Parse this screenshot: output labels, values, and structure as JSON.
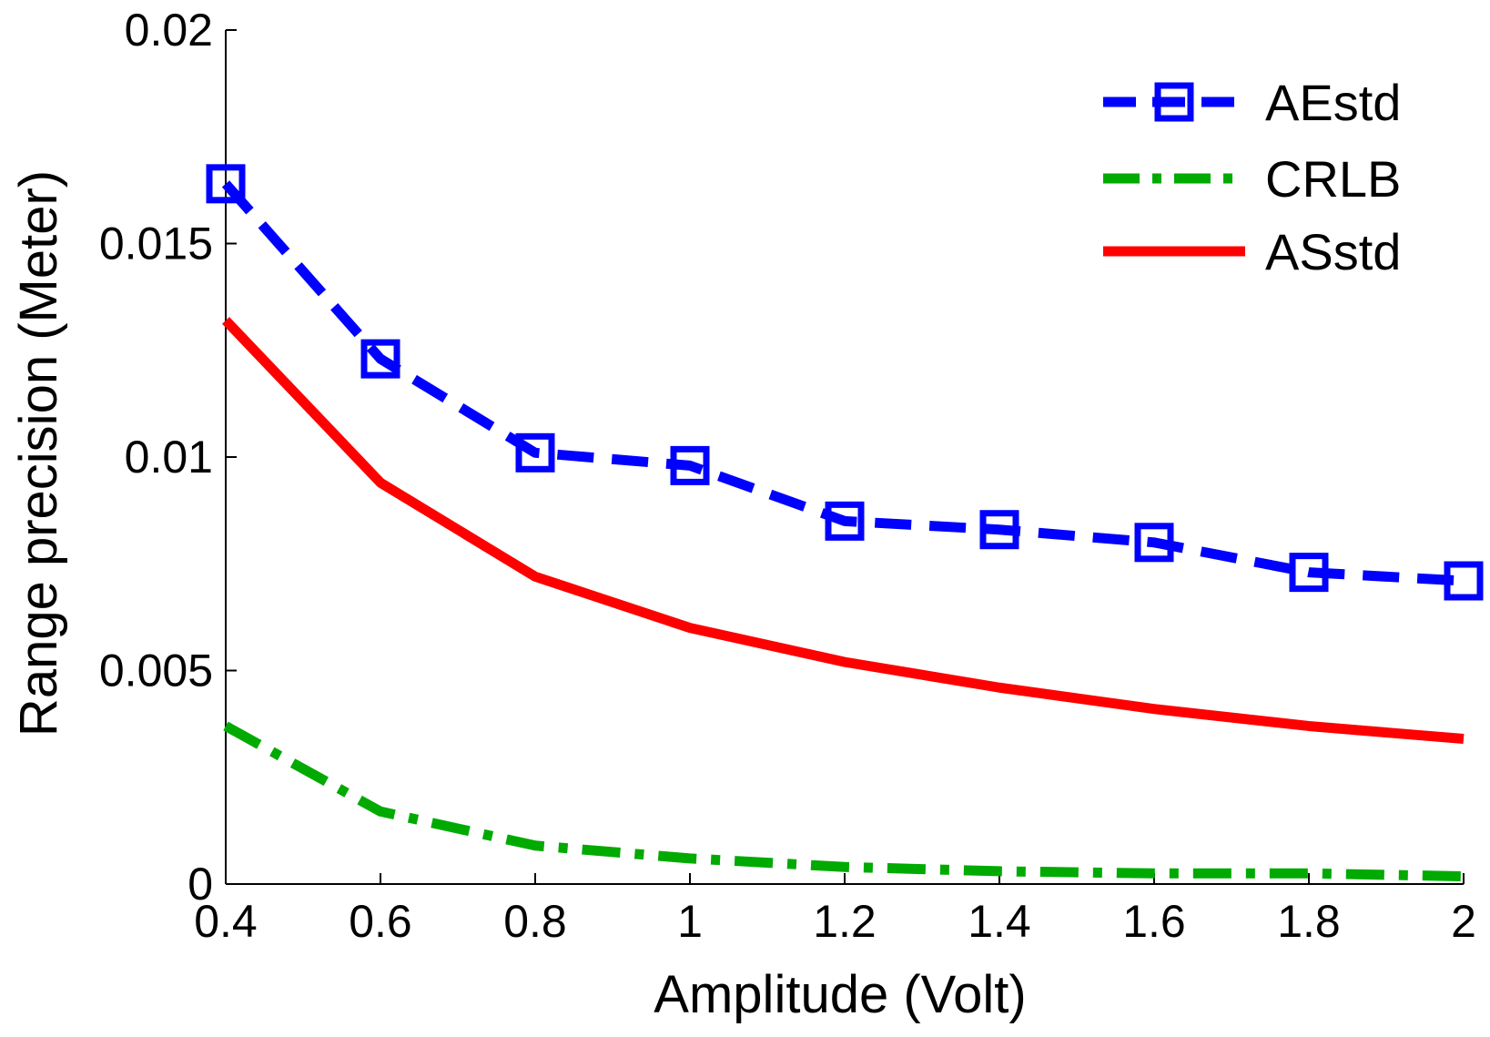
{
  "chart_data": {
    "type": "line",
    "title": "",
    "xlabel": "Amplitude (Volt)",
    "ylabel": "Range precision (Meter)",
    "xlim": [
      0.4,
      2
    ],
    "ylim": [
      0,
      0.02
    ],
    "x": [
      0.4,
      0.6,
      0.8,
      1.0,
      1.2,
      1.4,
      1.6,
      1.8,
      2.0
    ],
    "xticks": [
      0.4,
      0.6,
      0.8,
      1,
      1.2,
      1.4,
      1.6,
      1.8,
      2
    ],
    "xtick_labels": [
      "0.4",
      "0.6",
      "0.8",
      "1",
      "1.2",
      "1.4",
      "1.6",
      "1.8",
      "2"
    ],
    "yticks": [
      0,
      0.005,
      0.01,
      0.015,
      0.02
    ],
    "ytick_labels": [
      "0",
      "0.005",
      "0.01",
      "0.015",
      "0.02"
    ],
    "grid": false,
    "legend_position": "top-right",
    "series": [
      {
        "name": "AEstd",
        "color": "#0000ff",
        "style": "dashed",
        "marker": "square",
        "values": [
          0.0164,
          0.0123,
          0.0101,
          0.0098,
          0.0085,
          0.0083,
          0.008,
          0.0073,
          0.0071
        ]
      },
      {
        "name": "CRLB",
        "color": "#00aa00",
        "style": "dashdot",
        "marker": "none",
        "values": [
          0.0037,
          0.0017,
          0.0009,
          0.0006,
          0.0004,
          0.0003,
          0.00025,
          0.00025,
          0.00018
        ]
      },
      {
        "name": "ASstd",
        "color": "#ff0000",
        "style": "solid",
        "marker": "none",
        "values": [
          0.0132,
          0.0094,
          0.0072,
          0.006,
          0.0052,
          0.0046,
          0.0041,
          0.0037,
          0.0034
        ]
      }
    ]
  }
}
